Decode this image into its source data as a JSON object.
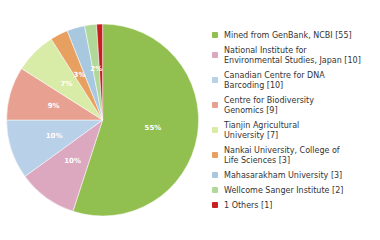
{
  "chart_data": {
    "type": "pie",
    "categories": [
      "Mined from GenBank, NCBI [55]",
      "National Institute for\nEnvironmental Studies, Japan [10]",
      "Canadian Centre for DNA\nBarcoding [10]",
      "Centre for Biodiversity\nGenomics [9]",
      "Tianjin Agricultural\nUniversity [7]",
      "Nankai University, College of\nLife Sciences [3]",
      "Mahasarakham University [3]",
      "Wellcome Sanger Institute [2]",
      "1 Others [1]"
    ],
    "values": [
      55,
      10,
      10,
      9,
      7,
      3,
      3,
      2,
      1
    ],
    "value_labels": [
      "55%",
      "10%",
      "10%",
      "9%",
      "7%",
      "3%",
      "3%",
      "2%",
      null
    ],
    "colors": [
      "#92c050",
      "#dca8c0",
      "#b8d0e8",
      "#e8a090",
      "#d8eca8",
      "#e8a060",
      "#a8c8e0",
      "#b0d898",
      "#c82020"
    ],
    "data_labels": true,
    "legend": "right"
  }
}
